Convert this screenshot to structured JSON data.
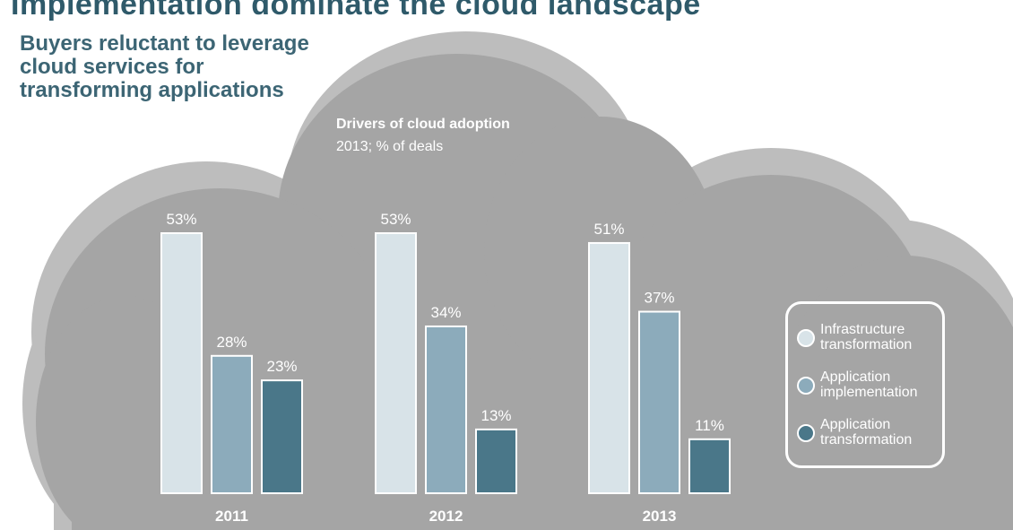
{
  "heading": "Implementation dominate the cloud landscape",
  "subheading": "Buyers reluctant to leverage cloud services for transforming applications",
  "chart_data": {
    "type": "bar",
    "title": "Drivers of cloud adoption",
    "subtitle": "2013; % of deals",
    "categories": [
      "2011",
      "2012",
      "2013"
    ],
    "series": [
      {
        "name": "Infrastructure transformation",
        "values": [
          53,
          53,
          51
        ],
        "color": "#d8e3e8"
      },
      {
        "name": "Application implementation",
        "values": [
          28,
          34,
          37
        ],
        "color": "#8cabbb"
      },
      {
        "name": "Application transformation",
        "values": [
          23,
          13,
          11
        ],
        "color": "#4a7789"
      }
    ],
    "value_suffix": "%",
    "ylim": [
      0,
      53
    ],
    "grid": false,
    "legend": "right"
  },
  "colors": {
    "cloud_back": "#bdbdbd",
    "cloud_front": "#a5a5a5",
    "text_dark": "#2f5a6a"
  }
}
